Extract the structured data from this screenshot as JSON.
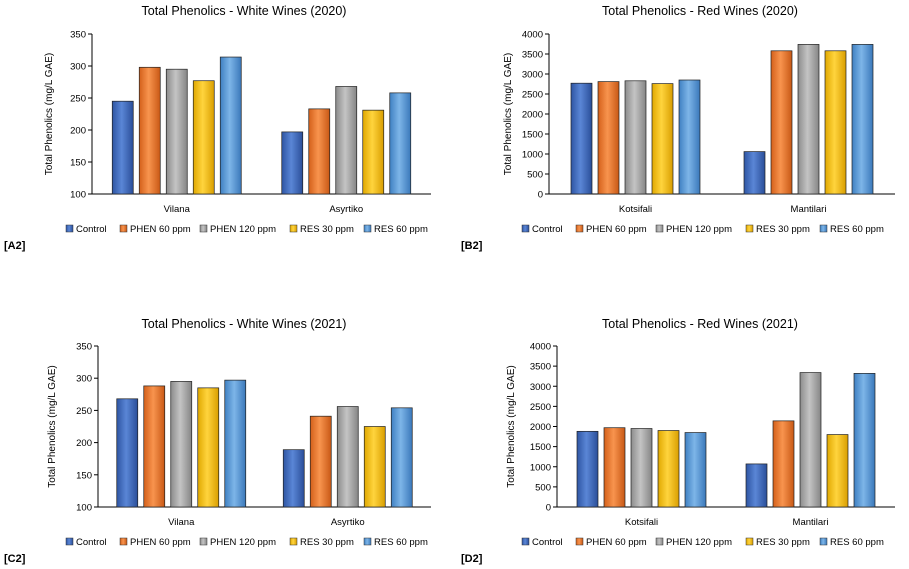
{
  "legend_labels": [
    "Control",
    "PHEN 60 ppm",
    "PHEN 120 ppm",
    "RES 30 ppm",
    "RES 60 ppm"
  ],
  "series_colors": [
    "#4472C4",
    "#ED7D31",
    "#A5A5A5",
    "#FFC000",
    "#5B9BD5"
  ],
  "panel_tags": [
    "[A2]",
    "[B2]",
    "[C2]",
    "[D2]"
  ],
  "chart_data": [
    {
      "type": "bar",
      "title": "Total Phenolics - White Wines (2020)",
      "xlabel": "",
      "ylabel": "Total Phenolics (mg/L GAE)",
      "categories": [
        "Vilana",
        "Asyrtiko"
      ],
      "ylim": [
        100,
        350
      ],
      "yticks": [
        100,
        150,
        200,
        250,
        300,
        350
      ],
      "grid": false,
      "legend": "bottom",
      "series": [
        {
          "name": "Control",
          "values": [
            245,
            197
          ]
        },
        {
          "name": "PHEN 60 ppm",
          "values": [
            298,
            233
          ]
        },
        {
          "name": "PHEN 120 ppm",
          "values": [
            295,
            268
          ]
        },
        {
          "name": "RES 30 ppm",
          "values": [
            277,
            231
          ]
        },
        {
          "name": "RES 60 ppm",
          "values": [
            314,
            258
          ]
        }
      ]
    },
    {
      "type": "bar",
      "title": "Total Phenolics - Red Wines (2020)",
      "xlabel": "",
      "ylabel": "Total Phenolics (mg/L GAE)",
      "categories": [
        "Kotsifali",
        "Mantilari"
      ],
      "ylim": [
        0,
        4000
      ],
      "yticks": [
        0,
        500,
        1000,
        1500,
        2000,
        2500,
        3000,
        3500,
        4000
      ],
      "grid": false,
      "legend": "bottom",
      "series": [
        {
          "name": "Control",
          "values": [
            2770,
            1060
          ]
        },
        {
          "name": "PHEN 60 ppm",
          "values": [
            2810,
            3580
          ]
        },
        {
          "name": "PHEN 120 ppm",
          "values": [
            2830,
            3740
          ]
        },
        {
          "name": "RES 30 ppm",
          "values": [
            2760,
            3580
          ]
        },
        {
          "name": "RES 60 ppm",
          "values": [
            2850,
            3740
          ]
        }
      ]
    },
    {
      "type": "bar",
      "title": "Total Phenolics - White Wines (2021)",
      "xlabel": "",
      "ylabel": "Total Phenolics (mg/L GAE)",
      "categories": [
        "Vilana",
        "Asyrtiko"
      ],
      "ylim": [
        100,
        350
      ],
      "yticks": [
        100,
        150,
        200,
        250,
        300,
        350
      ],
      "grid": false,
      "legend": "bottom",
      "series": [
        {
          "name": "Control",
          "values": [
            268,
            189
          ]
        },
        {
          "name": "PHEN 60 ppm",
          "values": [
            288,
            241
          ]
        },
        {
          "name": "PHEN 120 ppm",
          "values": [
            295,
            256
          ]
        },
        {
          "name": "RES 30 ppm",
          "values": [
            285,
            225
          ]
        },
        {
          "name": "RES 60 ppm",
          "values": [
            297,
            254
          ]
        }
      ]
    },
    {
      "type": "bar",
      "title": "Total Phenolics - Red Wines (2021)",
      "xlabel": "",
      "ylabel": "Total Phenolics (mg/L GAE)",
      "categories": [
        "Kotsifali",
        "Mantilari"
      ],
      "ylim": [
        0,
        4000
      ],
      "yticks": [
        0,
        500,
        1000,
        1500,
        2000,
        2500,
        3000,
        3500,
        4000
      ],
      "grid": false,
      "legend": "bottom",
      "series": [
        {
          "name": "Control",
          "values": [
            1880,
            1070
          ]
        },
        {
          "name": "PHEN 60 ppm",
          "values": [
            1970,
            2140
          ]
        },
        {
          "name": "PHEN 120 ppm",
          "values": [
            1950,
            3340
          ]
        },
        {
          "name": "RES 30 ppm",
          "values": [
            1900,
            1800
          ]
        },
        {
          "name": "RES 60 ppm",
          "values": [
            1850,
            3320
          ]
        }
      ]
    }
  ]
}
